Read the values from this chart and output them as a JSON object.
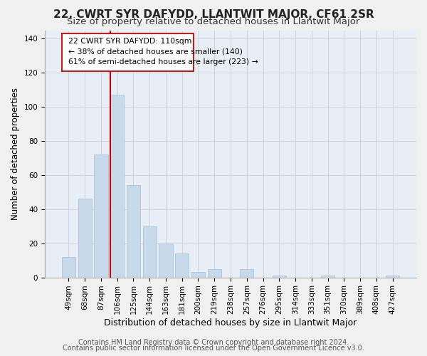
{
  "title": "22, CWRT SYR DAFYDD, LLANTWIT MAJOR, CF61 2SR",
  "subtitle": "Size of property relative to detached houses in Llantwit Major",
  "xlabel": "Distribution of detached houses by size in Llantwit Major",
  "ylabel": "Number of detached properties",
  "footer_line1": "Contains HM Land Registry data © Crown copyright and database right 2024.",
  "footer_line2": "Contains public sector information licensed under the Open Government Licence v3.0.",
  "bar_labels": [
    "49sqm",
    "68sqm",
    "87sqm",
    "106sqm",
    "125sqm",
    "144sqm",
    "163sqm",
    "181sqm",
    "200sqm",
    "219sqm",
    "238sqm",
    "257sqm",
    "276sqm",
    "295sqm",
    "314sqm",
    "333sqm",
    "351sqm",
    "370sqm",
    "389sqm",
    "408sqm",
    "427sqm"
  ],
  "bar_values": [
    12,
    46,
    72,
    107,
    54,
    30,
    20,
    14,
    3,
    5,
    0,
    5,
    0,
    1,
    0,
    0,
    1,
    0,
    0,
    0,
    1
  ],
  "bar_color": "#c8d9ea",
  "bar_edge_color": "#aac4d8",
  "vline_color": "#cc0000",
  "ann_line1": "22 CWRT SYR DAFYDD: 110sqm",
  "ann_line2": "← 38% of detached houses are smaller (140)",
  "ann_line3": "61% of semi-detached houses are larger (223) →",
  "ylim": [
    0,
    145
  ],
  "yticks": [
    0,
    20,
    40,
    60,
    80,
    100,
    120,
    140
  ],
  "background_color": "#f0f0f0",
  "plot_background_color": "#e8eef5",
  "title_fontsize": 11,
  "subtitle_fontsize": 9.5,
  "xlabel_fontsize": 9,
  "ylabel_fontsize": 8.5,
  "tick_fontsize": 7.5,
  "footer_fontsize": 7
}
